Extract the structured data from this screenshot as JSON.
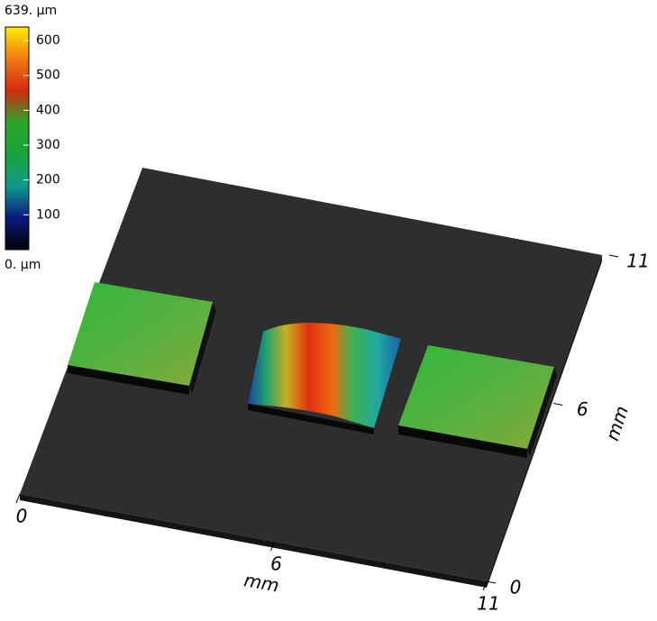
{
  "chart_data": {
    "type": "surface",
    "xlabel": "mm",
    "ylabel": "mm",
    "xlim": [
      0,
      11
    ],
    "xticks": [
      0,
      6,
      11
    ],
    "ylim": [
      0,
      11
    ],
    "yticks": [
      0,
      6,
      11
    ],
    "clim": [
      0,
      639
    ],
    "cticks": [
      {
        "value": 0,
        "label": "0. µm"
      },
      100,
      200,
      300,
      400,
      500,
      600,
      {
        "value": 639,
        "label": "639. µm"
      }
    ],
    "colormap": [
      "#000000",
      "#0a1a80",
      "#0f9a8a",
      "#1aa33a",
      "#2aa62a",
      "#d42a10",
      "#f07a10",
      "#ffee00"
    ]
  }
}
